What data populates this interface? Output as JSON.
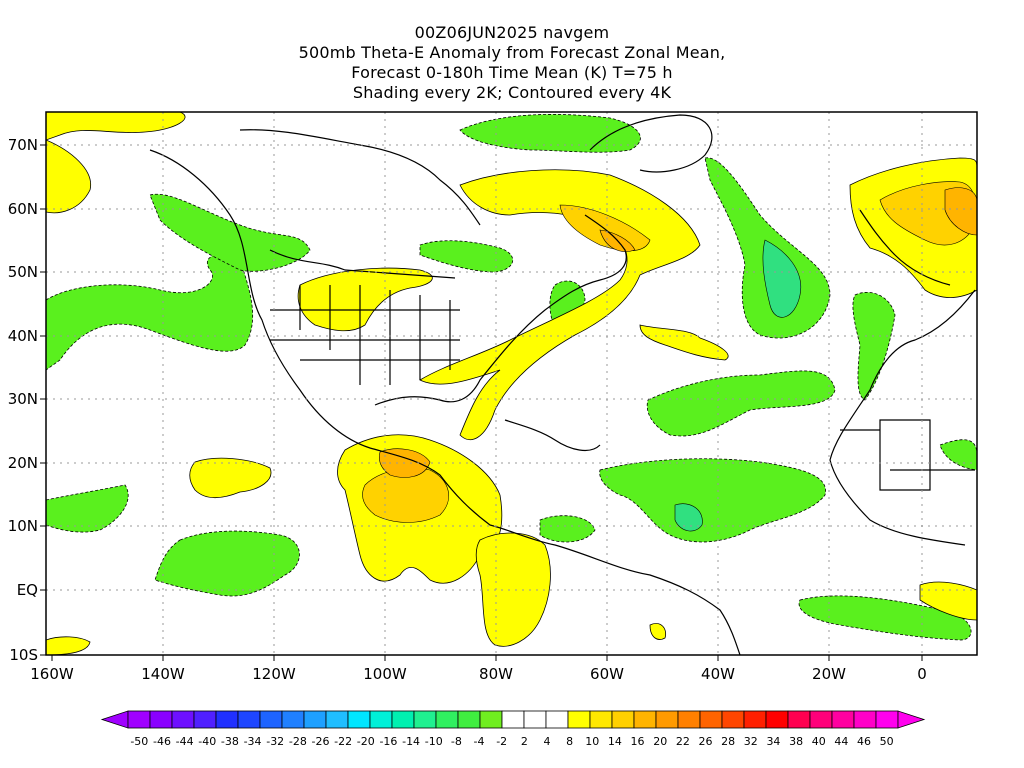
{
  "title": {
    "line1": "00Z06JUN2025 navgem",
    "line2": "500mb Theta-E Anomaly from Forecast Zonal Mean,",
    "line3": "Forecast 0-180h Time Mean (K) T=75 h",
    "line4": "Shading every 2K; Contoured every 4K"
  },
  "axes": {
    "y_labels": [
      "70N",
      "60N",
      "50N",
      "40N",
      "30N",
      "20N",
      "10N",
      "EQ",
      "10S"
    ],
    "x_labels": [
      "160W",
      "140W",
      "120W",
      "100W",
      "80W",
      "60W",
      "40W",
      "20W",
      "0"
    ]
  },
  "colorbar": {
    "labels": [
      "-50",
      "-46",
      "-44",
      "-40",
      "-38",
      "-34",
      "-32",
      "-28",
      "-26",
      "-22",
      "-20",
      "-16",
      "-14",
      "-10",
      "-8",
      "-4",
      "-2",
      "2",
      "4",
      "8",
      "10",
      "14",
      "16",
      "20",
      "22",
      "26",
      "28",
      "32",
      "34",
      "38",
      "40",
      "44",
      "46",
      "50"
    ],
    "colors": [
      "#a000ff",
      "#8a00ff",
      "#6e10ff",
      "#5020ff",
      "#2030ff",
      "#1e46ff",
      "#1e64ff",
      "#2080ff",
      "#1ea0ff",
      "#20beff",
      "#00e6ff",
      "#00f0d8",
      "#00f0b0",
      "#20f090",
      "#30f060",
      "#40ee40",
      "#70ee20",
      "#ffffff",
      "#ffffff",
      "#ffffff",
      "#ffff00",
      "#ffe800",
      "#ffd000",
      "#ffb400",
      "#ff9a00",
      "#ff8000",
      "#ff6400",
      "#ff4600",
      "#ff2000",
      "#ff0000",
      "#ff0050",
      "#ff007a",
      "#ff00a0",
      "#ff00c8",
      "#ff00ee"
    ]
  },
  "legend_colors": {
    "green": "#5af01e",
    "teal_green": "#30e080",
    "yellow": "#ffff00",
    "gold": "#ffd200",
    "orange": "#ffb400"
  }
}
